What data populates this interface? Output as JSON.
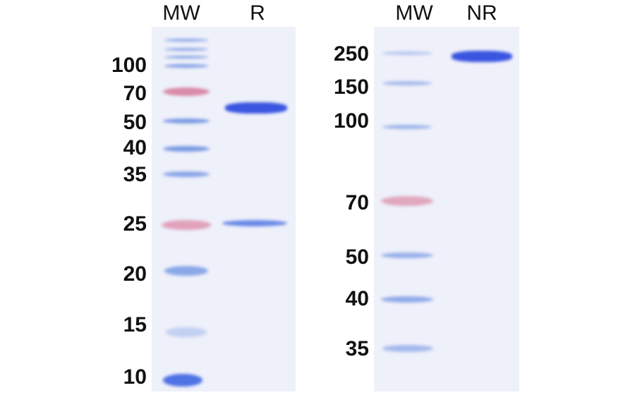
{
  "left_gel": {
    "lanes": [
      "MW",
      "R"
    ],
    "markers": [
      "100",
      "70",
      "50",
      "40",
      "35",
      "25",
      "20",
      "15",
      "10"
    ]
  },
  "right_gel": {
    "lanes": [
      "MW",
      "NR"
    ],
    "markers": [
      "250",
      "150",
      "100",
      "70",
      "50",
      "40",
      "35"
    ]
  },
  "colors": {
    "ladder_blue": "#6f95e0",
    "ladder_pink": "#d98aa8",
    "sample_band": "#3a55e0",
    "gel_bg": "#eef0fa"
  }
}
